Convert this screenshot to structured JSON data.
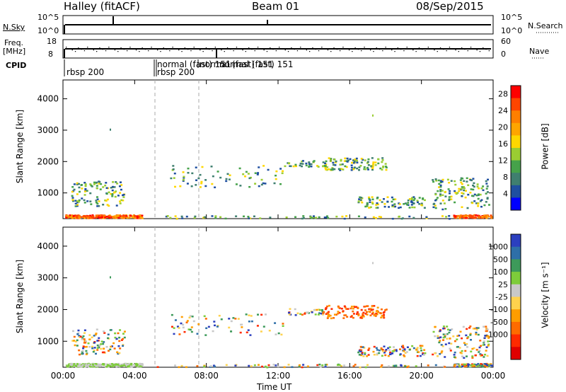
{
  "header": {
    "station": "Halley (fitACF)",
    "beam": "Beam 01",
    "date": "08/Sep/2015"
  },
  "strip": {
    "nsky_label": "N.Sky",
    "nsearch_label": "N.Search",
    "freq_label_1": "Freq.",
    "freq_label_2": "[MHz]",
    "nave_label": "Nave",
    "cpid_label": "CPID",
    "nsky_ticks": [
      "10^5",
      "10^0"
    ],
    "nsearch_ticks": [
      "10^5",
      "10^0"
    ],
    "freq_ticks": [
      "18",
      "8"
    ],
    "nave_ticks": [
      "60",
      "0"
    ],
    "cpid_segments": [
      "rbsp 200",
      "normal (fast) 151",
      "rbsp 200",
      "normal (fast) 151",
      "normal (fast) 151"
    ]
  },
  "colors": {
    "power_scale": [
      "#0000ff",
      "#1f4fa0",
      "#3f7f6f",
      "#46a24a",
      "#9acd32",
      "#ffd700",
      "#ffa500",
      "#ff7f00",
      "#ff4500",
      "#ff0000"
    ],
    "velocity_scale": [
      "#2b3fbf",
      "#2e6fa8",
      "#3d9a5a",
      "#7dcc3a",
      "#c8c8c8",
      "#ffd24d",
      "#ff9d00",
      "#ff6b00",
      "#ff2a00",
      "#e00000"
    ]
  },
  "chart_data": [
    {
      "type": "heatmap",
      "name": "power",
      "ylabel": "Slant Range [km]",
      "yticks": [
        "1000",
        "2000",
        "3000",
        "4000"
      ],
      "ylim": [
        180,
        4600
      ],
      "colorbar_label": "Power [dB]",
      "colorbar_ticks": [
        "28",
        "24",
        "20",
        "16",
        "12",
        "8",
        "4"
      ],
      "colorbar_range": [
        0,
        30
      ]
    },
    {
      "type": "heatmap",
      "name": "velocity",
      "xlabel": "Time UT",
      "xticks": [
        "00:00",
        "04:00",
        "08:00",
        "12:00",
        "16:00",
        "20:00",
        "00:00"
      ],
      "ylabel": "Slant Range [km]",
      "yticks": [
        "1000",
        "2000",
        "3000",
        "4000"
      ],
      "ylim": [
        180,
        4600
      ],
      "colorbar_label": "Velocity [m s⁻¹]",
      "colorbar_ticks": [
        "1000",
        "500",
        "100",
        "25",
        "-25",
        "-100",
        "-500",
        "-1000"
      ]
    }
  ]
}
